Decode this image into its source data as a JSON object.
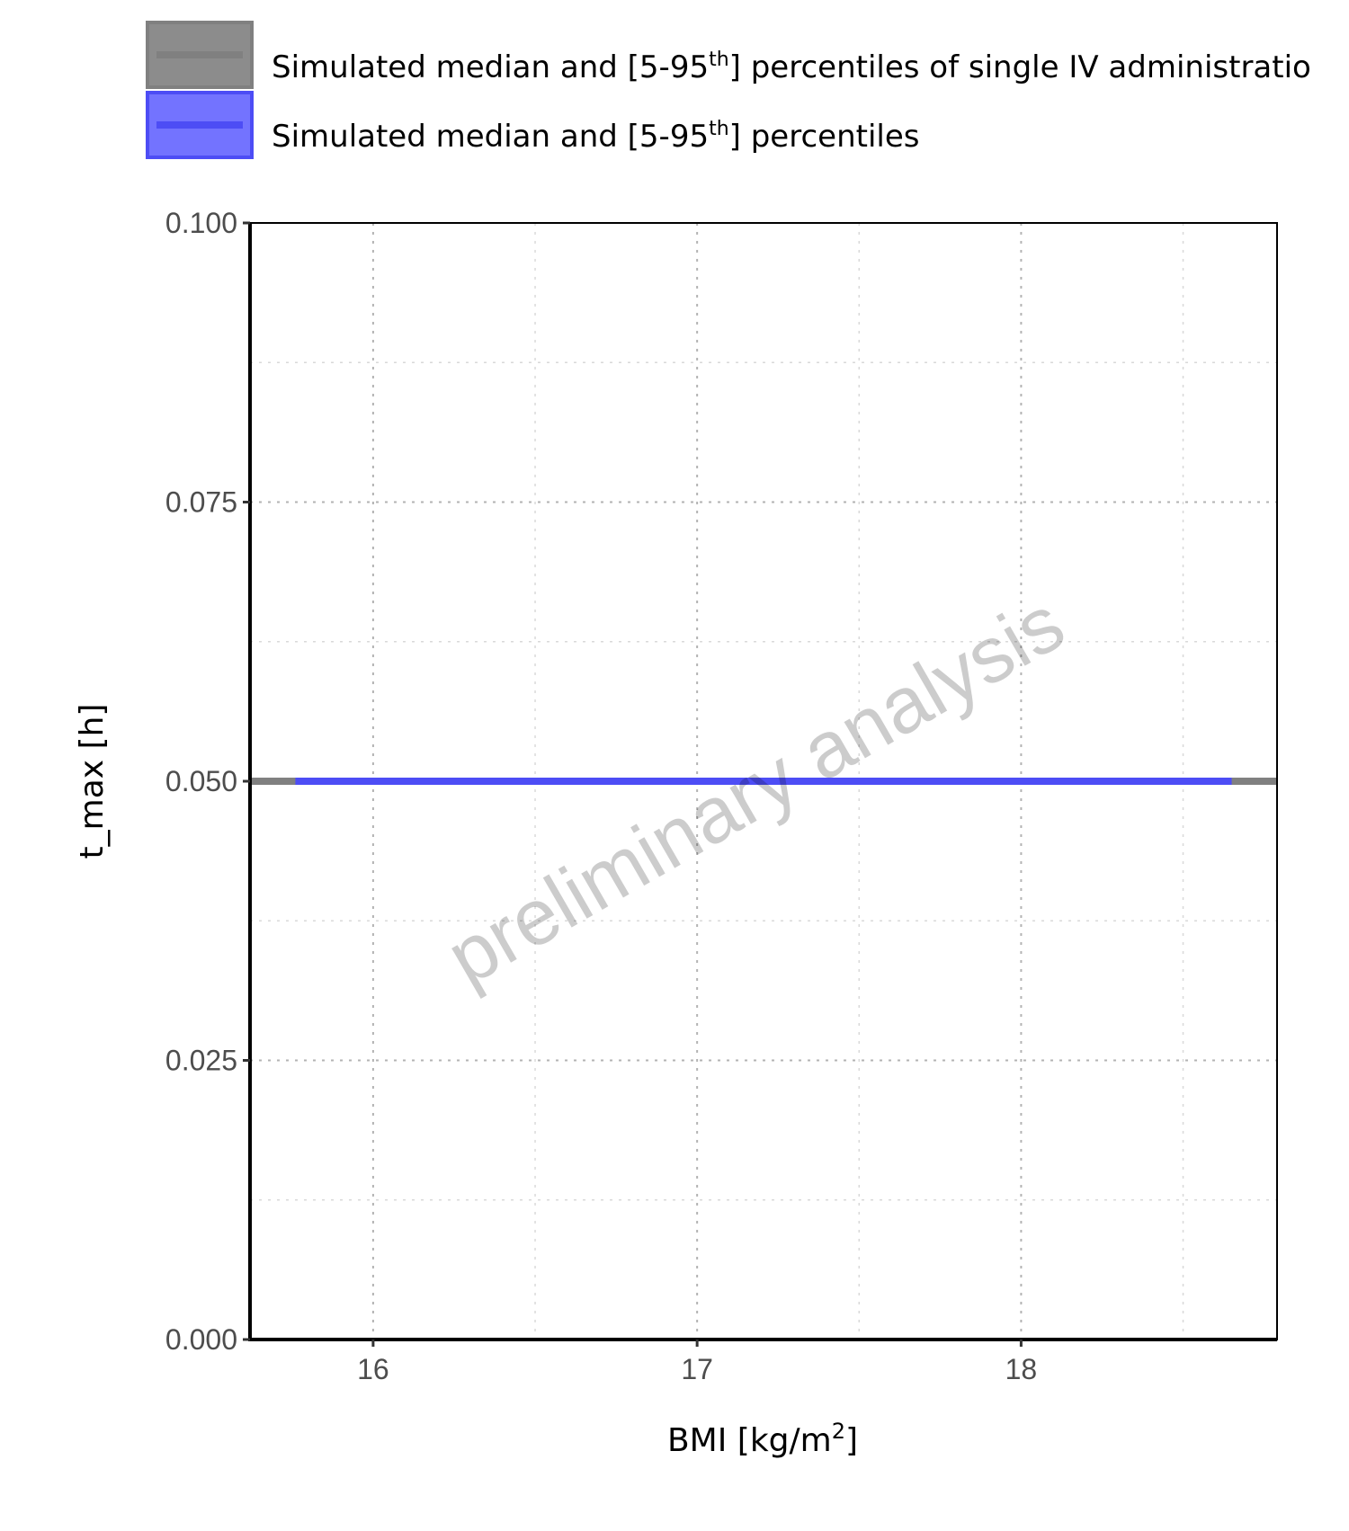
{
  "chart_data": {
    "type": "line",
    "xlabel_main": "BMI [kg/m",
    "xlabel_sup": "2",
    "xlabel_end": "]",
    "ylabel": "t_max [h]",
    "xlim": [
      15.62,
      18.79
    ],
    "ylim": [
      0,
      0.1
    ],
    "x_ticks": [
      16,
      17,
      18
    ],
    "x_minor_ticks": [
      16.5,
      17.5,
      18.5
    ],
    "y_ticks": [
      0,
      0.025,
      0.05,
      0.075,
      0.1
    ],
    "y_tick_labels": [
      "0.000",
      "0.025",
      "0.050",
      "0.075",
      "0.100"
    ],
    "y_minor_ticks": [
      0.0125,
      0.0375,
      0.0625,
      0.0875
    ],
    "grid": true,
    "legend_position": "top-left",
    "watermark": "preliminary analysis",
    "series": [
      {
        "name_pre": "Simulated median and [5-95",
        "name_sup": "th",
        "name_post": "] percentiles of single IV administratio",
        "color": "#808080",
        "fill": "#8c8c8c",
        "x": [
          15.62,
          18.79
        ],
        "median": [
          0.05,
          0.05
        ],
        "p5": [
          0.05,
          0.05
        ],
        "p95": [
          0.05,
          0.05
        ]
      },
      {
        "name_pre": "Simulated median and [5-95",
        "name_sup": "th",
        "name_post": "] percentiles",
        "color": "#4d4df5",
        "fill": "#7373ff",
        "x": [
          15.76,
          18.65
        ],
        "median": [
          0.05,
          0.05
        ],
        "p5": [
          0.05,
          0.05
        ],
        "p95": [
          0.05,
          0.05
        ]
      }
    ]
  }
}
